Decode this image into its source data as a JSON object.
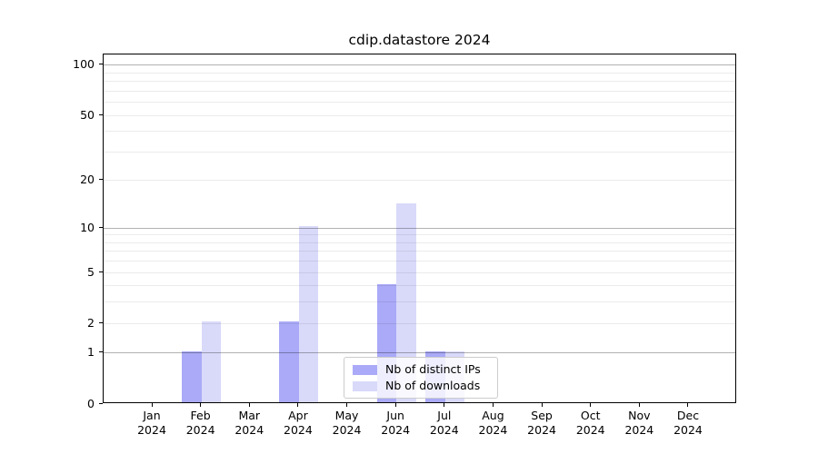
{
  "title": "cdip.datastore 2024",
  "chart_data": {
    "type": "bar",
    "title": "cdip.datastore 2024",
    "xlabel": "",
    "ylabel": "",
    "yscale": "log10(value+1)",
    "ylim": [
      0,
      116
    ],
    "grid": true,
    "legend_position": "inside lower center-right",
    "categories": [
      "Jan",
      "Feb",
      "Mar",
      "Apr",
      "May",
      "Jun",
      "Jul",
      "Aug",
      "Sep",
      "Oct",
      "Nov",
      "Dec"
    ],
    "category_year": "2024",
    "y_ticks": [
      0,
      1,
      2,
      5,
      10,
      20,
      50,
      100
    ],
    "y_major_gridlines": [
      1,
      10,
      100
    ],
    "y_minor_gridlines": [
      2,
      3,
      4,
      5,
      6,
      7,
      8,
      9,
      20,
      30,
      40,
      50,
      60,
      70,
      80,
      90
    ],
    "series": [
      {
        "name": "Nb of distinct IPs",
        "color": "#aaaaf8",
        "values": [
          0,
          1,
          0,
          2,
          0,
          4,
          1,
          0,
          0,
          0,
          0,
          0
        ]
      },
      {
        "name": "Nb of downloads",
        "color": "#d9d9fa",
        "values": [
          0,
          2,
          0,
          10,
          0,
          14,
          1,
          0,
          0,
          0,
          0,
          0
        ]
      }
    ]
  },
  "colors": {
    "major_grid": "#b3b3b3",
    "minor_grid": "#ebebeb",
    "axis": "#000000",
    "legend_border": "#cccccc"
  }
}
